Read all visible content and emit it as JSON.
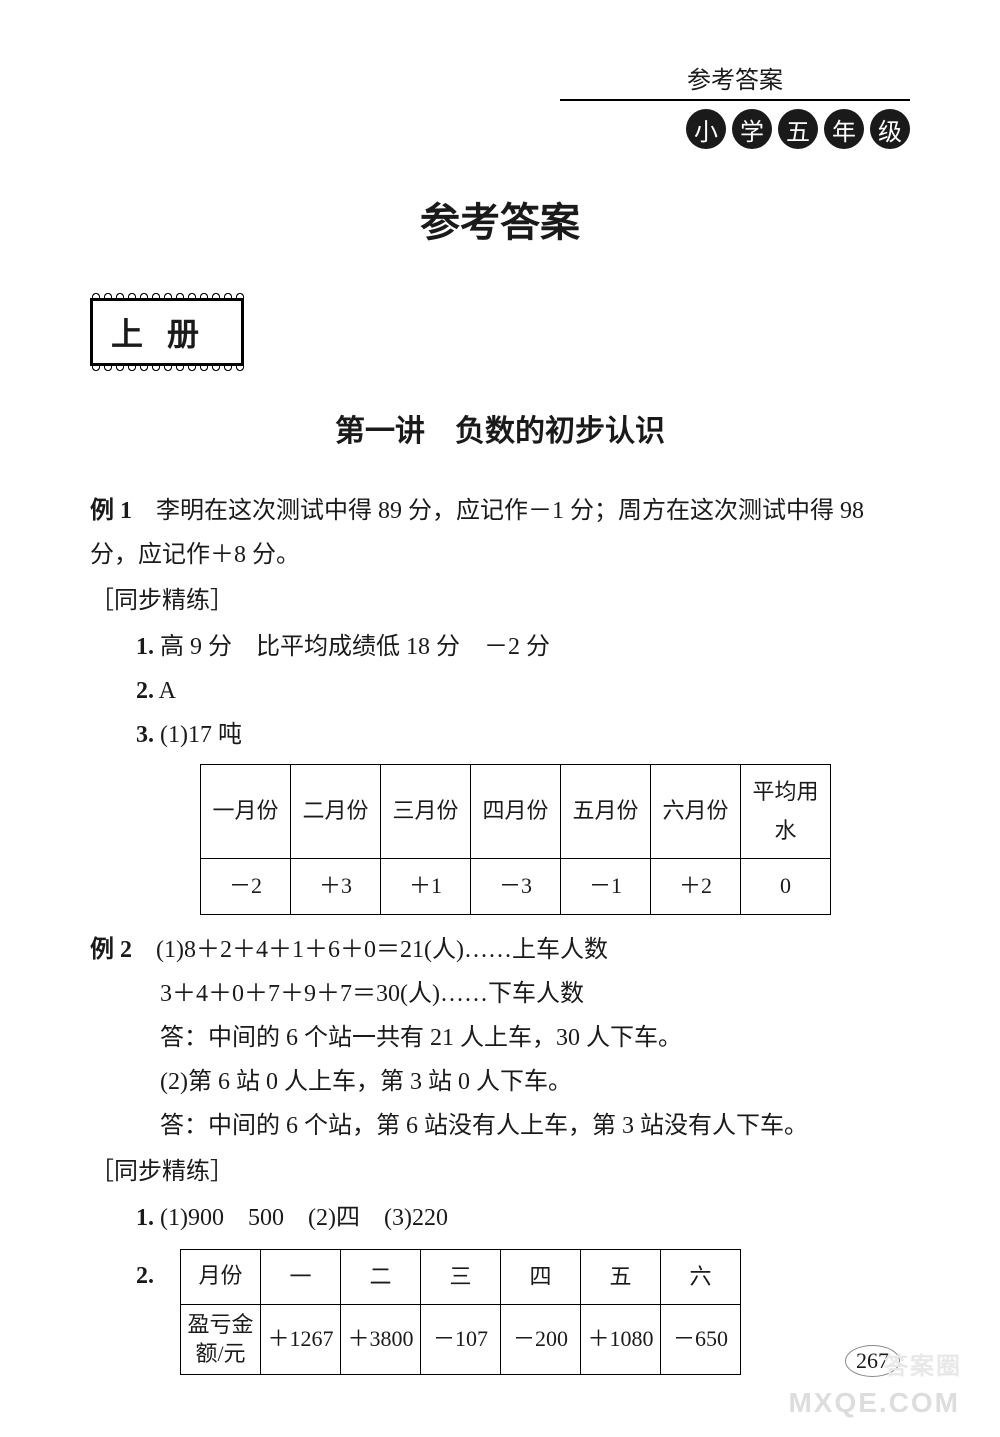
{
  "header": {
    "ref": "参考答案",
    "grade_chars": [
      "小",
      "学",
      "五",
      "年",
      "级"
    ]
  },
  "main_title": "参考答案",
  "volume": "上册",
  "lesson_title": "第一讲　负数的初步认识",
  "example1": {
    "label": "例 1",
    "line1": "　李明在这次测试中得 89 分，应记作－1 分；周方在这次测试中得 98",
    "line2": "分，应记作＋8 分。"
  },
  "practice1_label": "［同步精练］",
  "practice1": {
    "item1_num": "1.",
    "item1_text": " 高 9 分　比平均成绩低 18 分　－2 分",
    "item2_num": "2.",
    "item2_text": " A",
    "item3_num": "3.",
    "item3_text": " (1)17 吨"
  },
  "table1": {
    "headers": [
      "一月份",
      "二月份",
      "三月份",
      "四月份",
      "五月份",
      "六月份",
      "平均用水"
    ],
    "row": [
      "－2",
      "＋3",
      "＋1",
      "－3",
      "－1",
      "＋2",
      "0"
    ]
  },
  "example2": {
    "label": "例 2",
    "line1": "　(1)8＋2＋4＋1＋6＋0＝21(人)……上车人数",
    "line2": "3＋4＋0＋7＋9＋7＝30(人)……下车人数",
    "line3": "答：中间的 6 个站一共有 21 人上车，30 人下车。",
    "line4": "(2)第 6 站 0 人上车，第 3 站 0 人下车。",
    "line5": "答：中间的 6 个站，第 6 站没有人上车，第 3 站没有人下车。"
  },
  "practice2_label": "［同步精练］",
  "practice2": {
    "item1_num": "1.",
    "item1_text": " (1)900　500　(2)四　(3)220",
    "item2_num": "2."
  },
  "table2": {
    "row1_head": "月份",
    "row1": [
      "一",
      "二",
      "三",
      "四",
      "五",
      "六"
    ],
    "row2_head": "盈亏金额/元",
    "row2": [
      "＋1267",
      "＋3800",
      "－107",
      "－200",
      "＋1080",
      "－650"
    ]
  },
  "page_number": "267",
  "watermark1": "MXQE.COM",
  "watermark2": "答案圈",
  "colors": {
    "text": "#1a1a1a",
    "background": "#ffffff",
    "badge_bg": "#1a1a1a",
    "badge_fg": "#ffffff",
    "watermark": "#dddddd"
  }
}
